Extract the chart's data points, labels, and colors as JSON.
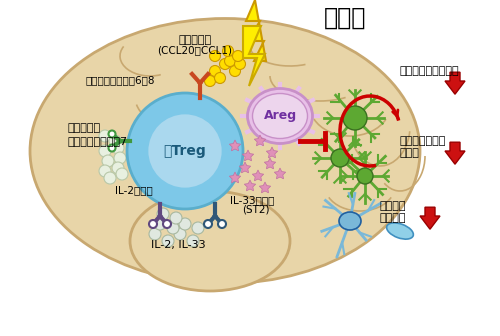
{
  "bg_color": "#ffffff",
  "brain_fill": "#e8d5a8",
  "brain_edge": "#c8a870",
  "title": "脳梗塞",
  "title_fontsize": 18,
  "title_bold": true,
  "labels": {
    "chemokine": "ケモカイン",
    "chemokine_sub": "(CCL20・CCL1)",
    "chemokine_receptor": "ケモカイン受容体6・8",
    "serotonin": "セロトニン",
    "serotonin_receptor": "セロトニン受容体7",
    "il2_receptor": "IL-2受容体",
    "il33_receptor": "IL-33受容体",
    "il33_receptor_sub": "(ST2)",
    "il2_il33": "IL-2, IL-33",
    "areg": "Areg",
    "brain_treg": "脳Treg",
    "inflammatory": "炎症性サイトカイン",
    "astrocyte": "アストロサイト",
    "astrocyte2": "活性化",
    "neuron_damage": "神経細胞",
    "neuron_damage2": "ダメージ"
  },
  "colors": {
    "treg_outer": "#87ceeb",
    "treg_inner": "#6bb8d4",
    "treg_innermost": "#add8e6",
    "yellow_dot": "#ffdd00",
    "white_dot": "#e8f0e8",
    "pink_star": "#e8a0c0",
    "areg_fill": "#e8b8e0",
    "areg_edge": "#d090c0",
    "green_cell": "#5da832",
    "neuron_body": "#7fb8d8",
    "red_arrow": "#cc0000",
    "red_inhibit": "#cc0000",
    "orange_receptor": "#c84820",
    "purple_receptor": "#604880",
    "teal_receptor": "#305878",
    "green_serotonin": "#409840"
  }
}
